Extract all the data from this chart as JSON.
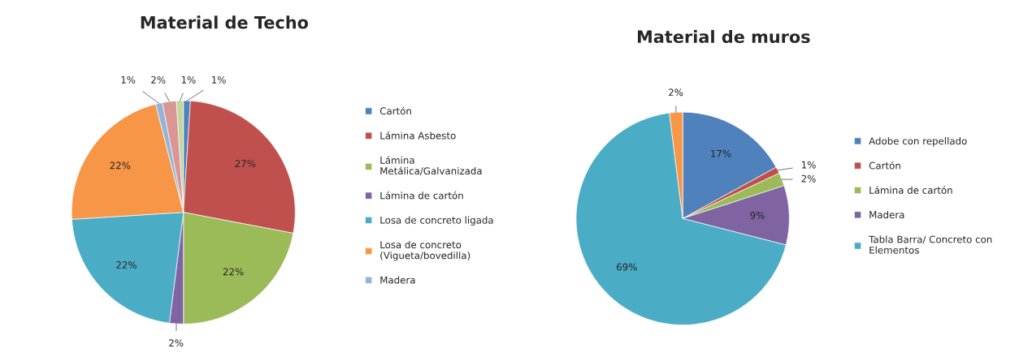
{
  "chart_data": [
    {
      "type": "pie",
      "title": "Material de Techo",
      "categories": [
        "Cartón",
        "Lámina Asbesto",
        "Lámina Metálica/Galvanizada",
        "Lámina de cartón",
        "Losa de concreto ligada",
        "Losa de concreto (Vigueta/bovedilla)",
        "Madera",
        null,
        null
      ],
      "values": [
        1,
        27,
        22,
        2,
        22,
        22,
        1,
        2,
        1
      ],
      "colors": [
        "#4f81bd",
        "#c0504d",
        "#9bbb59",
        "#8064a2",
        "#4bacc6",
        "#f79646",
        "#95b3d7",
        "#d99694",
        "#c3d69b"
      ],
      "value_labels": [
        "1%",
        "27%",
        "22%",
        "2%",
        "22%",
        "22%",
        "1%",
        "2%",
        "1%"
      ],
      "legend": "right"
    },
    {
      "type": "pie",
      "title": "Material de muros",
      "categories": [
        "Adobe con repellado",
        "Cartón",
        "Lámina de cartón",
        "Madera",
        "Tabla Barra/ Concreto con Elementos",
        null
      ],
      "values": [
        17,
        1,
        2,
        9,
        69,
        2
      ],
      "colors": [
        "#4f81bd",
        "#c0504d",
        "#9bbb59",
        "#8064a2",
        "#4bacc6",
        "#f79646"
      ],
      "value_labels": [
        "17%",
        "1%",
        "2%",
        "9%",
        "69%",
        "2%"
      ],
      "legend": "right"
    }
  ]
}
